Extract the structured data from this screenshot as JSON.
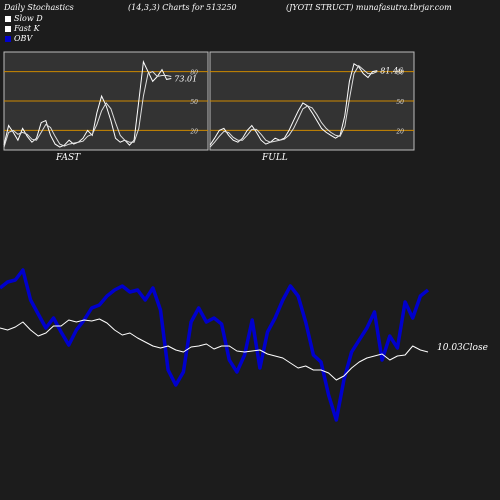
{
  "header": {
    "left": "Daily Stochastics",
    "center": "(14,3,3) Charts for 513250",
    "right": "(JYOTI STRUCT) munafasutra.tbrjar.com"
  },
  "legend": [
    {
      "label": "Slow  D",
      "color": "#ffffff"
    },
    {
      "label": "Fast K",
      "color": "#ffffff"
    },
    {
      "label": "OBV",
      "color": "#0000cc"
    }
  ],
  "colors": {
    "background": "#1c1c1c",
    "panel_bg": "#333333",
    "level_line": "#cc8800",
    "obv": "#0000cc",
    "close": "#ffffff"
  },
  "chart_data": [
    {
      "type": "line",
      "label": "FAST",
      "levels": [
        80,
        50,
        20
      ],
      "ylim": [
        0,
        100
      ],
      "value_label": "73.01",
      "series": [
        {
          "name": "Fast K",
          "values": [
            5,
            25,
            18,
            10,
            22,
            14,
            8,
            12,
            28,
            30,
            15,
            6,
            3,
            5,
            10,
            6,
            8,
            12,
            20,
            15,
            38,
            55,
            45,
            30,
            12,
            8,
            10,
            5,
            10,
            50,
            90,
            80,
            70,
            75,
            82,
            72,
            73
          ]
        },
        {
          "name": "Slow  D",
          "values": [
            3,
            18,
            20,
            16,
            18,
            16,
            11,
            10,
            18,
            26,
            23,
            14,
            6,
            4,
            6,
            7,
            8,
            9,
            14,
            16,
            26,
            40,
            48,
            42,
            28,
            15,
            10,
            8,
            8,
            22,
            55,
            78,
            80,
            75,
            76,
            76,
            75
          ]
        }
      ]
    },
    {
      "type": "line",
      "label": "FULL",
      "levels": [
        80,
        50,
        20
      ],
      "ylim": [
        0,
        100
      ],
      "value_label": "81.46",
      "series": [
        {
          "name": "Fast K",
          "values": [
            5,
            12,
            20,
            22,
            15,
            10,
            8,
            12,
            20,
            25,
            18,
            10,
            6,
            8,
            12,
            10,
            12,
            20,
            30,
            40,
            48,
            45,
            38,
            30,
            22,
            18,
            15,
            12,
            15,
            35,
            70,
            88,
            85,
            78,
            74,
            80,
            81
          ]
        },
        {
          "name": "Slow  D",
          "values": [
            3,
            8,
            14,
            19,
            18,
            13,
            10,
            10,
            15,
            21,
            21,
            16,
            10,
            8,
            9,
            10,
            11,
            15,
            22,
            32,
            42,
            45,
            43,
            36,
            28,
            22,
            18,
            15,
            14,
            24,
            52,
            78,
            86,
            82,
            78,
            78,
            80
          ]
        }
      ]
    },
    {
      "type": "line",
      "series": [
        {
          "name": "OBV",
          "values": [
            288,
            282,
            280,
            270,
            300,
            314,
            328,
            318,
            332,
            345,
            330,
            320,
            308,
            305,
            296,
            290,
            286,
            292,
            290,
            300,
            288,
            310,
            370,
            385,
            372,
            322,
            308,
            322,
            318,
            324,
            360,
            372,
            355,
            320,
            368,
            332,
            318,
            300,
            286,
            296,
            322,
            355,
            362,
            395,
            420,
            380,
            352,
            340,
            328,
            312,
            360,
            336,
            348,
            302,
            318,
            296,
            290
          ]
        },
        {
          "name": "Close",
          "values": [
            328,
            330,
            327,
            322,
            330,
            336,
            333,
            326,
            326,
            320,
            322,
            320,
            321,
            319,
            323,
            330,
            335,
            333,
            338,
            342,
            346,
            348,
            346,
            350,
            352,
            347,
            346,
            344,
            349,
            346,
            346,
            351,
            352,
            351,
            350,
            354,
            356,
            358,
            363,
            368,
            366,
            370,
            370,
            373,
            380,
            376,
            368,
            362,
            358,
            356,
            354,
            360,
            356,
            355,
            346,
            350,
            352
          ]
        }
      ],
      "close_label": "10.03Close"
    }
  ]
}
